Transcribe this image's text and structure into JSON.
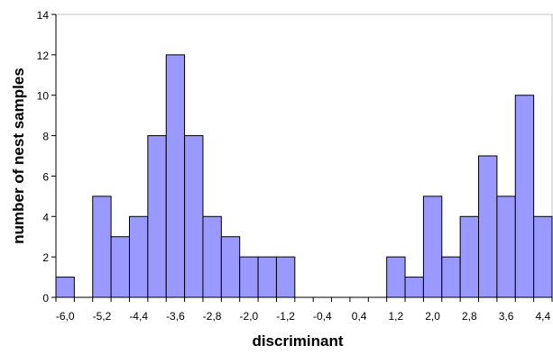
{
  "chart_data": {
    "type": "bar",
    "title": "",
    "xlabel": "discriminant",
    "ylabel": "number of nest samples",
    "ylim": [
      0,
      14
    ],
    "yticks": [
      0,
      2,
      4,
      6,
      8,
      10,
      12,
      14
    ],
    "grid": false,
    "legend": "none",
    "bar_color": "#9999ff",
    "bar_edge_color": "#000000",
    "categories": [
      "-6,0",
      "-5,6",
      "-5,2",
      "-4,8",
      "-4,4",
      "-4,0",
      "-3,6",
      "-3,2",
      "-2,8",
      "-2,4",
      "-2,0",
      "-1,6",
      "-1,2",
      "-0,8",
      "-0,4",
      "0,0",
      "0,4",
      "0,8",
      "1,2",
      "1,6",
      "2,0",
      "2,4",
      "2,8",
      "3,2",
      "3,6",
      "4,0",
      "4,4"
    ],
    "tick_labels": [
      "-6,0",
      "",
      "-5,2",
      "",
      "-4,4",
      "",
      "-3,6",
      "",
      "-2,8",
      "",
      "-2,0",
      "",
      "-1,2",
      "",
      "-0,4",
      "",
      "0,4",
      "",
      "1,2",
      "",
      "2,0",
      "",
      "2,8",
      "",
      "3,6",
      "",
      "4,4"
    ],
    "values": [
      1,
      0,
      5,
      3,
      4,
      8,
      12,
      8,
      4,
      3,
      2,
      2,
      2,
      0,
      0,
      0,
      0,
      0,
      2,
      1,
      5,
      2,
      4,
      7,
      5,
      10,
      4
    ]
  }
}
